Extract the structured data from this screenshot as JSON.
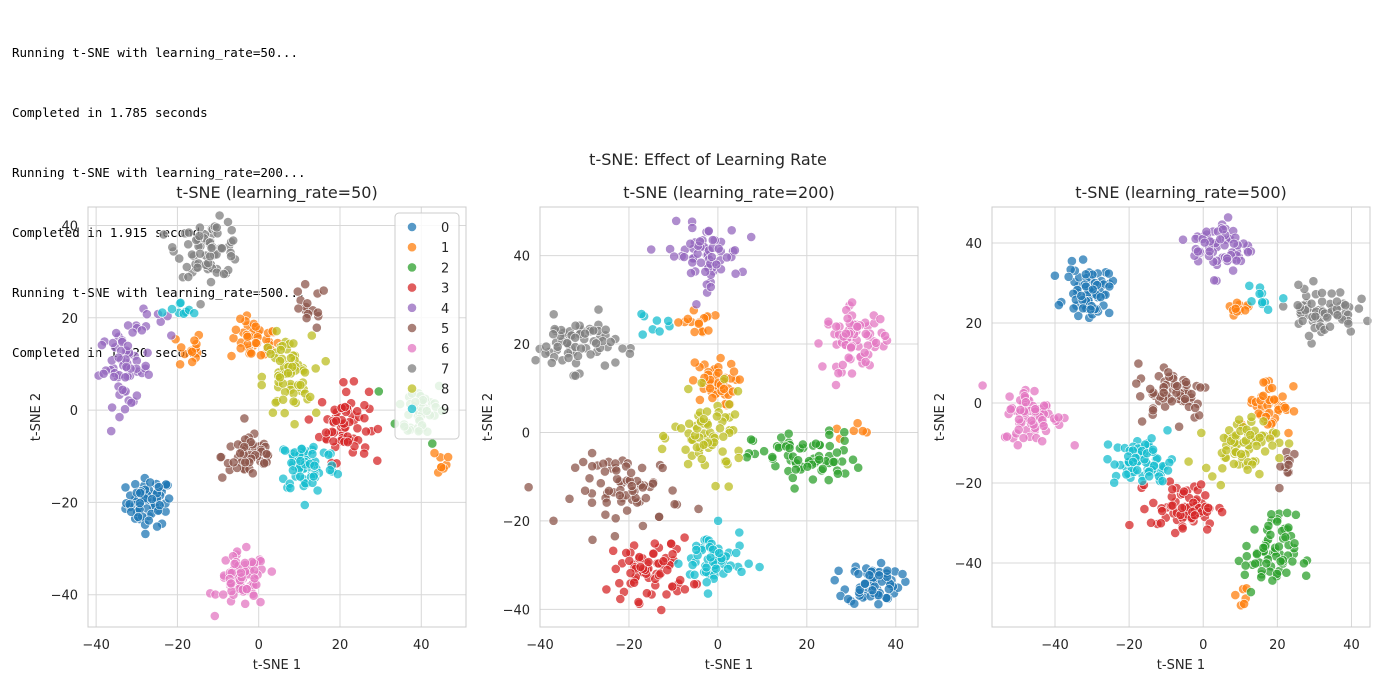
{
  "output_log": [
    "Running t-SNE with learning_rate=50...",
    "Completed in 1.785 seconds",
    "Running t-SNE with learning_rate=200...",
    "Completed in 1.915 seconds",
    "Running t-SNE with learning_rate=500...",
    "Completed in 1.920 seconds"
  ],
  "figure": {
    "suptitle": "t-SNE: Effect of Learning Rate",
    "legend_labels": [
      "0",
      "1",
      "2",
      "3",
      "4",
      "5",
      "6",
      "7",
      "8",
      "9"
    ],
    "colors": [
      "#1f77b4",
      "#ff7f0e",
      "#2ca02c",
      "#d62728",
      "#9467bd",
      "#8c564b",
      "#e377c2",
      "#7f7f7f",
      "#bcbd22",
      "#17becf"
    ]
  },
  "chart_data": [
    {
      "type": "scatter",
      "title": "t-SNE (learning_rate=50)",
      "xlabel": "t-SNE 1",
      "ylabel": "t-SNE 2",
      "xlim": [
        -42,
        51
      ],
      "ylim": [
        -47,
        44
      ],
      "xticks": [
        -40,
        -20,
        0,
        20,
        40
      ],
      "yticks": [
        -40,
        -20,
        0,
        20,
        40
      ],
      "grid": true,
      "legend": "upper right",
      "clusters": [
        {
          "label": "0",
          "center": [
            -27,
            -20
          ],
          "spread": [
            2.8,
            2.6
          ],
          "count": 70
        },
        {
          "label": "1",
          "center": [
            -1,
            15
          ],
          "spread": [
            3,
            2.2
          ],
          "count": 45
        },
        {
          "label": "1",
          "center": [
            -17,
            13
          ],
          "spread": [
            1.5,
            2.2
          ],
          "count": 15
        },
        {
          "label": "1",
          "center": [
            44,
            -11
          ],
          "spread": [
            2,
            1.5
          ],
          "count": 8
        },
        {
          "label": "2",
          "center": [
            40,
            0
          ],
          "spread": [
            3,
            3.5
          ],
          "count": 45
        },
        {
          "label": "3",
          "center": [
            21,
            -3
          ],
          "spread": [
            3,
            4
          ],
          "count": 70
        },
        {
          "label": "4",
          "center": [
            -33,
            9
          ],
          "spread": [
            3.2,
            4
          ],
          "count": 60
        },
        {
          "label": "4",
          "center": [
            -26,
            20
          ],
          "spread": [
            2,
            1.5
          ],
          "count": 8
        },
        {
          "label": "5",
          "center": [
            -2,
            -10
          ],
          "spread": [
            3.5,
            2.5
          ],
          "count": 55
        },
        {
          "label": "5",
          "center": [
            12,
            22
          ],
          "spread": [
            2.5,
            2.5
          ],
          "count": 15
        },
        {
          "label": "6",
          "center": [
            -4,
            -37
          ],
          "spread": [
            3,
            3
          ],
          "count": 70
        },
        {
          "label": "7",
          "center": [
            -12,
            35
          ],
          "spread": [
            4,
            3
          ],
          "count": 70
        },
        {
          "label": "8",
          "center": [
            7,
            7
          ],
          "spread": [
            3,
            4.5
          ],
          "count": 70
        },
        {
          "label": "9",
          "center": [
            12,
            -12
          ],
          "spread": [
            3.5,
            3
          ],
          "count": 70
        },
        {
          "label": "9",
          "center": [
            -19,
            21
          ],
          "spread": [
            2.5,
            1.2
          ],
          "count": 10
        }
      ]
    },
    {
      "type": "scatter",
      "title": "t-SNE (learning_rate=200)",
      "xlabel": "t-SNE 1",
      "ylabel": "t-SNE 2",
      "xlim": [
        -40,
        45
      ],
      "ylim": [
        -44,
        51
      ],
      "xticks": [
        -40,
        -20,
        0,
        20,
        40
      ],
      "yticks": [
        -40,
        -20,
        0,
        20,
        40
      ],
      "grid": true,
      "clusters": [
        {
          "label": "0",
          "center": [
            35,
            -34
          ],
          "spread": [
            3,
            2.5
          ],
          "count": 70
        },
        {
          "label": "1",
          "center": [
            -1,
            11
          ],
          "spread": [
            2.5,
            2.5
          ],
          "count": 45
        },
        {
          "label": "1",
          "center": [
            -5,
            25
          ],
          "spread": [
            2,
            1.5
          ],
          "count": 15
        },
        {
          "label": "1",
          "center": [
            30,
            0
          ],
          "spread": [
            2,
            1.5
          ],
          "count": 6
        },
        {
          "label": "2",
          "center": [
            20,
            -6
          ],
          "spread": [
            6,
            3
          ],
          "count": 70
        },
        {
          "label": "3",
          "center": [
            -15,
            -31
          ],
          "spread": [
            4.5,
            3.5
          ],
          "count": 70
        },
        {
          "label": "4",
          "center": [
            -3,
            40
          ],
          "spread": [
            4,
            3.5
          ],
          "count": 65
        },
        {
          "label": "5",
          "center": [
            -20,
            -13
          ],
          "spread": [
            6,
            4
          ],
          "count": 70
        },
        {
          "label": "6",
          "center": [
            31,
            21
          ],
          "spread": [
            3.5,
            3.5
          ],
          "count": 70
        },
        {
          "label": "7",
          "center": [
            -32,
            20
          ],
          "spread": [
            4.5,
            3
          ],
          "count": 70
        },
        {
          "label": "8",
          "center": [
            -2,
            -1
          ],
          "spread": [
            4,
            4.5
          ],
          "count": 70
        },
        {
          "label": "9",
          "center": [
            -1,
            -29
          ],
          "spread": [
            3.5,
            3.5
          ],
          "count": 60
        },
        {
          "label": "9",
          "center": [
            -15,
            24
          ],
          "spread": [
            2,
            1.5
          ],
          "count": 8
        }
      ]
    },
    {
      "type": "scatter",
      "title": "t-SNE (learning_rate=500)",
      "xlabel": "t-SNE 1",
      "ylabel": "t-SNE 2",
      "xlim": [
        -57,
        45
      ],
      "ylim": [
        -56,
        49
      ],
      "xticks": [
        -40,
        -20,
        0,
        20,
        40
      ],
      "yticks": [
        -40,
        -20,
        0,
        20,
        40
      ],
      "grid": true,
      "clusters": [
        {
          "label": "0",
          "center": [
            -31,
            28
          ],
          "spread": [
            3,
            3
          ],
          "count": 70
        },
        {
          "label": "1",
          "center": [
            18,
            0
          ],
          "spread": [
            3,
            3.5
          ],
          "count": 45
        },
        {
          "label": "1",
          "center": [
            8,
            22
          ],
          "spread": [
            2,
            2
          ],
          "count": 12
        },
        {
          "label": "1",
          "center": [
            11,
            -48
          ],
          "spread": [
            1,
            1.5
          ],
          "count": 6
        },
        {
          "label": "2",
          "center": [
            18,
            -38
          ],
          "spread": [
            3.5,
            5
          ],
          "count": 70
        },
        {
          "label": "3",
          "center": [
            -5,
            -26
          ],
          "spread": [
            4.5,
            3
          ],
          "count": 70
        },
        {
          "label": "4",
          "center": [
            5,
            39
          ],
          "spread": [
            4,
            3.5
          ],
          "count": 65
        },
        {
          "label": "5",
          "center": [
            -8,
            3
          ],
          "spread": [
            5,
            3.5
          ],
          "count": 60
        },
        {
          "label": "5",
          "center": [
            23,
            -16
          ],
          "spread": [
            1.5,
            2.5
          ],
          "count": 10
        },
        {
          "label": "6",
          "center": [
            -46,
            -3
          ],
          "spread": [
            4,
            3.5
          ],
          "count": 70
        },
        {
          "label": "7",
          "center": [
            32,
            23
          ],
          "spread": [
            4.5,
            3
          ],
          "count": 70
        },
        {
          "label": "8",
          "center": [
            10,
            -10
          ],
          "spread": [
            5,
            3.5
          ],
          "count": 70
        },
        {
          "label": "9",
          "center": [
            -16,
            -15
          ],
          "spread": [
            4,
            3
          ],
          "count": 70
        },
        {
          "label": "9",
          "center": [
            16,
            27
          ],
          "spread": [
            3,
            2
          ],
          "count": 10
        }
      ]
    }
  ]
}
